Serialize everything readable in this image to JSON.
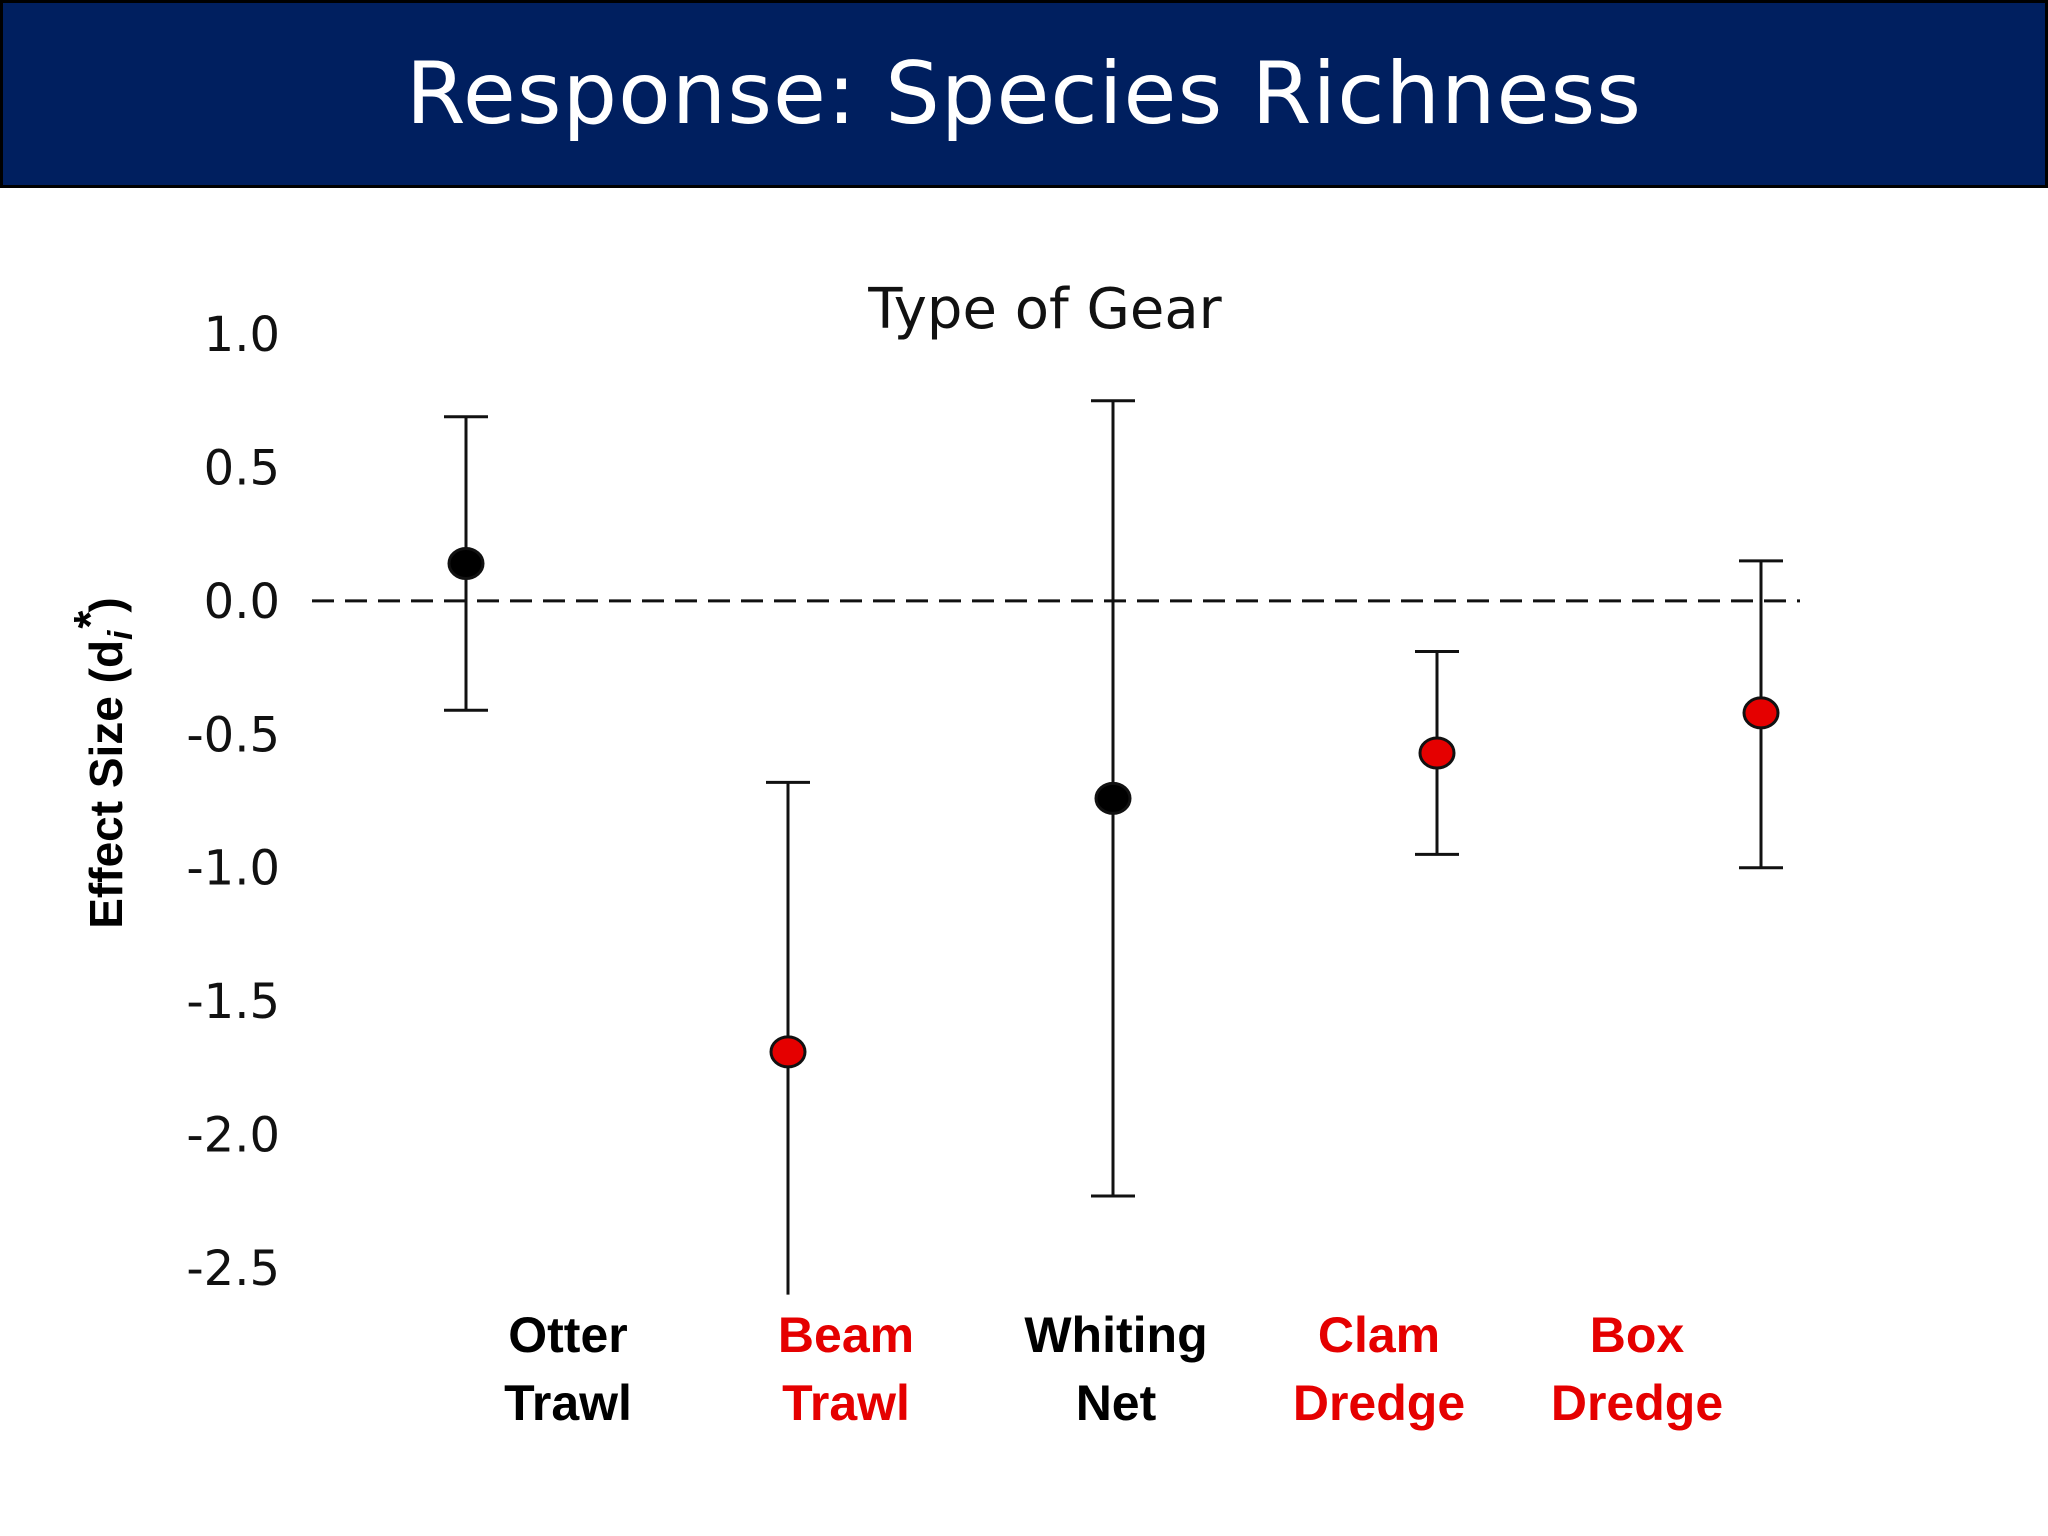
{
  "header": {
    "title": "Response: Species Richness"
  },
  "chart_data": {
    "type": "scatter",
    "title": "Type of Gear",
    "ylabel": "Effect Size (d",
    "ylabel_sub": "i",
    "ylabel_sup": "*",
    "ylabel_close": ")",
    "ylim": [
      -2.5,
      1.0
    ],
    "yticks": [
      1.0,
      0.5,
      0.0,
      -0.5,
      -1.0,
      -1.5,
      -2.0,
      -2.5
    ],
    "ytick_labels": [
      "1.0",
      "0.5",
      "0.0",
      "-0.5",
      "-1.0",
      "-1.5",
      "-2.0",
      "-2.5"
    ],
    "reference_line": {
      "y": 0.0,
      "style": "dashed"
    },
    "grid": false,
    "colors": {
      "significant": "#e50000",
      "not_significant": "#000000"
    },
    "categories": [
      {
        "line1": "Otter",
        "line2": "Trawl",
        "value": 0.14,
        "ci_low": -0.41,
        "ci_high": 0.69,
        "color": "#000000",
        "cap_low": true
      },
      {
        "line1": "Beam",
        "line2": "Trawl",
        "value": -1.69,
        "ci_low": -2.6,
        "ci_high": -0.68,
        "color": "#e50000",
        "cap_low": false
      },
      {
        "line1": "Whiting",
        "line2": "Net",
        "value": -0.74,
        "ci_low": -2.23,
        "ci_high": 0.75,
        "color": "#000000",
        "cap_low": true
      },
      {
        "line1": "Clam",
        "line2": "Dredge",
        "value": -0.57,
        "ci_low": -0.95,
        "ci_high": -0.19,
        "color": "#e50000",
        "cap_low": true
      },
      {
        "line1": "Box",
        "line2": "Dredge",
        "value": -0.42,
        "ci_low": -1.0,
        "ci_high": 0.15,
        "color": "#e50000",
        "cap_low": true
      }
    ]
  }
}
